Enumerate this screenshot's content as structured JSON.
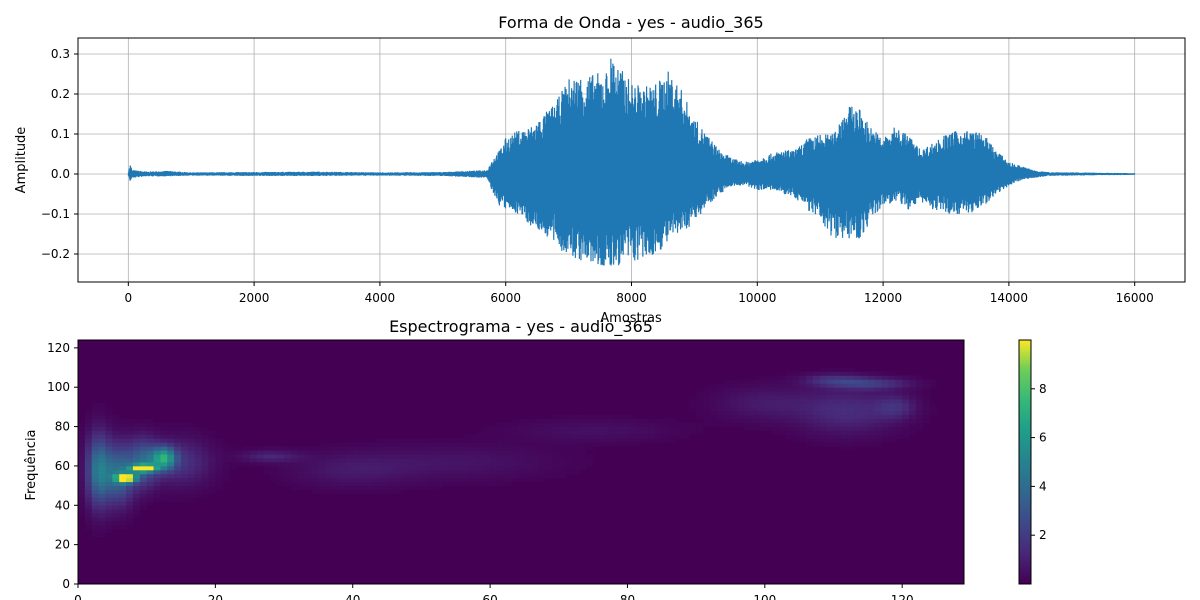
{
  "chart_data": [
    {
      "type": "line",
      "title": "Forma de Onda - yes - audio_365",
      "xlabel": "Amostras",
      "ylabel": "Amplitude",
      "xlim": [
        -800,
        16800
      ],
      "ylim": [
        -0.27,
        0.34
      ],
      "grid": true,
      "line_color": "#1f77b4",
      "xticks": [
        0,
        2000,
        4000,
        6000,
        8000,
        10000,
        12000,
        14000,
        16000
      ],
      "xtick_labels": [
        "0",
        "2000",
        "4000",
        "6000",
        "8000",
        "10000",
        "12000",
        "14000",
        "16000"
      ],
      "yticks": [
        -0.2,
        -0.1,
        0.0,
        0.1,
        0.2,
        0.3
      ],
      "ytick_labels": [
        "−0.2",
        "−0.1",
        "0.0",
        "0.1",
        "0.2",
        "0.3"
      ],
      "series": [
        {
          "x": [
            0,
            30,
            60,
            300,
            600,
            1000,
            2000,
            3000,
            4000,
            5000,
            5700,
            5800,
            5900,
            6000,
            6200,
            6400,
            6600,
            6800,
            7000,
            7200,
            7400,
            7600,
            7700,
            7800,
            8000,
            8200,
            8400,
            8600,
            8800,
            9000,
            9200,
            9400,
            9600,
            9800,
            10000,
            10200,
            10400,
            10600,
            10800,
            11000,
            11200,
            11400,
            11600,
            11800,
            12000,
            12200,
            12400,
            12600,
            12800,
            13000,
            13200,
            13400,
            13600,
            13800,
            14000,
            14200,
            14400,
            14600,
            15000,
            15500,
            16000
          ],
          "env_pos": [
            0.003,
            0.025,
            0.01,
            0.006,
            0.008,
            0.004,
            0.005,
            0.006,
            0.004,
            0.005,
            0.01,
            0.04,
            0.06,
            0.09,
            0.11,
            0.12,
            0.15,
            0.18,
            0.24,
            0.25,
            0.25,
            0.26,
            0.31,
            0.27,
            0.23,
            0.22,
            0.23,
            0.26,
            0.21,
            0.14,
            0.1,
            0.06,
            0.04,
            0.03,
            0.04,
            0.05,
            0.06,
            0.06,
            0.09,
            0.1,
            0.1,
            0.17,
            0.17,
            0.12,
            0.09,
            0.12,
            0.1,
            0.06,
            0.08,
            0.1,
            0.11,
            0.11,
            0.1,
            0.06,
            0.03,
            0.02,
            0.01,
            0.005,
            0.004,
            0.003,
            0.002
          ],
          "env_neg": [
            -0.003,
            -0.02,
            -0.01,
            -0.006,
            -0.006,
            -0.004,
            -0.005,
            -0.005,
            -0.004,
            -0.005,
            -0.01,
            -0.05,
            -0.08,
            -0.09,
            -0.1,
            -0.13,
            -0.15,
            -0.18,
            -0.21,
            -0.22,
            -0.23,
            -0.24,
            -0.24,
            -0.23,
            -0.22,
            -0.22,
            -0.2,
            -0.17,
            -0.15,
            -0.12,
            -0.08,
            -0.05,
            -0.03,
            -0.03,
            -0.04,
            -0.04,
            -0.05,
            -0.06,
            -0.09,
            -0.12,
            -0.16,
            -0.16,
            -0.17,
            -0.12,
            -0.08,
            -0.07,
            -0.09,
            -0.07,
            -0.09,
            -0.1,
            -0.1,
            -0.1,
            -0.08,
            -0.05,
            -0.03,
            -0.015,
            -0.01,
            -0.005,
            -0.004,
            -0.003,
            -0.002
          ]
        }
      ]
    },
    {
      "type": "heatmap",
      "title": "Espectrograma - yes - audio_365",
      "xlabel": "",
      "ylabel": "Frequência",
      "xlim": [
        0,
        129
      ],
      "ylim": [
        0,
        124
      ],
      "colormap": "viridis",
      "colorbar_range": [
        0,
        10
      ],
      "xticks": [
        0,
        20,
        40,
        60,
        80,
        100,
        120
      ],
      "xtick_labels": [
        "0",
        "20",
        "40",
        "60",
        "80",
        "100",
        "120"
      ],
      "yticks": [
        0,
        20,
        40,
        60,
        80,
        100,
        120
      ],
      "ytick_labels": [
        "0",
        "20",
        "40",
        "60",
        "80",
        "100",
        "120"
      ],
      "colorbar_ticks": [
        2,
        4,
        6,
        8
      ],
      "colorbar_tick_labels": [
        "2",
        "4",
        "6",
        "8"
      ],
      "hotspots": [
        {
          "x": 3,
          "y": 58,
          "sx": 1.2,
          "sy": 12,
          "v": 4.5
        },
        {
          "x": 6,
          "y": 56,
          "sx": 1.5,
          "sy": 10,
          "v": 4.0
        },
        {
          "x": 7,
          "y": 54,
          "sx": 1.0,
          "sy": 1.5,
          "v": 9.0
        },
        {
          "x": 9.5,
          "y": 59,
          "sx": 1.2,
          "sy": 1.2,
          "v": 9.5
        },
        {
          "x": 9.5,
          "y": 62,
          "sx": 1.5,
          "sy": 8,
          "v": 3.5
        },
        {
          "x": 12.5,
          "y": 64,
          "sx": 1.2,
          "sy": 4,
          "v": 6.0
        },
        {
          "x": 15,
          "y": 62,
          "sx": 3,
          "sy": 8,
          "v": 1.6
        },
        {
          "x": 28,
          "y": 65,
          "sx": 3,
          "sy": 2,
          "v": 1.2
        },
        {
          "x": 40,
          "y": 58,
          "sx": 6,
          "sy": 6,
          "v": 0.7
        },
        {
          "x": 55,
          "y": 62,
          "sx": 10,
          "sy": 6,
          "v": 0.6
        },
        {
          "x": 75,
          "y": 78,
          "sx": 8,
          "sy": 4,
          "v": 0.5
        },
        {
          "x": 100,
          "y": 92,
          "sx": 5,
          "sy": 6,
          "v": 0.8
        },
        {
          "x": 112,
          "y": 88,
          "sx": 5,
          "sy": 8,
          "v": 1.4
        },
        {
          "x": 115,
          "y": 102,
          "sx": 4,
          "sy": 2,
          "v": 2.0
        },
        {
          "x": 110,
          "y": 104,
          "sx": 3,
          "sy": 2,
          "v": 1.4
        },
        {
          "x": 119,
          "y": 90,
          "sx": 2,
          "sy": 4,
          "v": 1.3
        }
      ]
    }
  ]
}
